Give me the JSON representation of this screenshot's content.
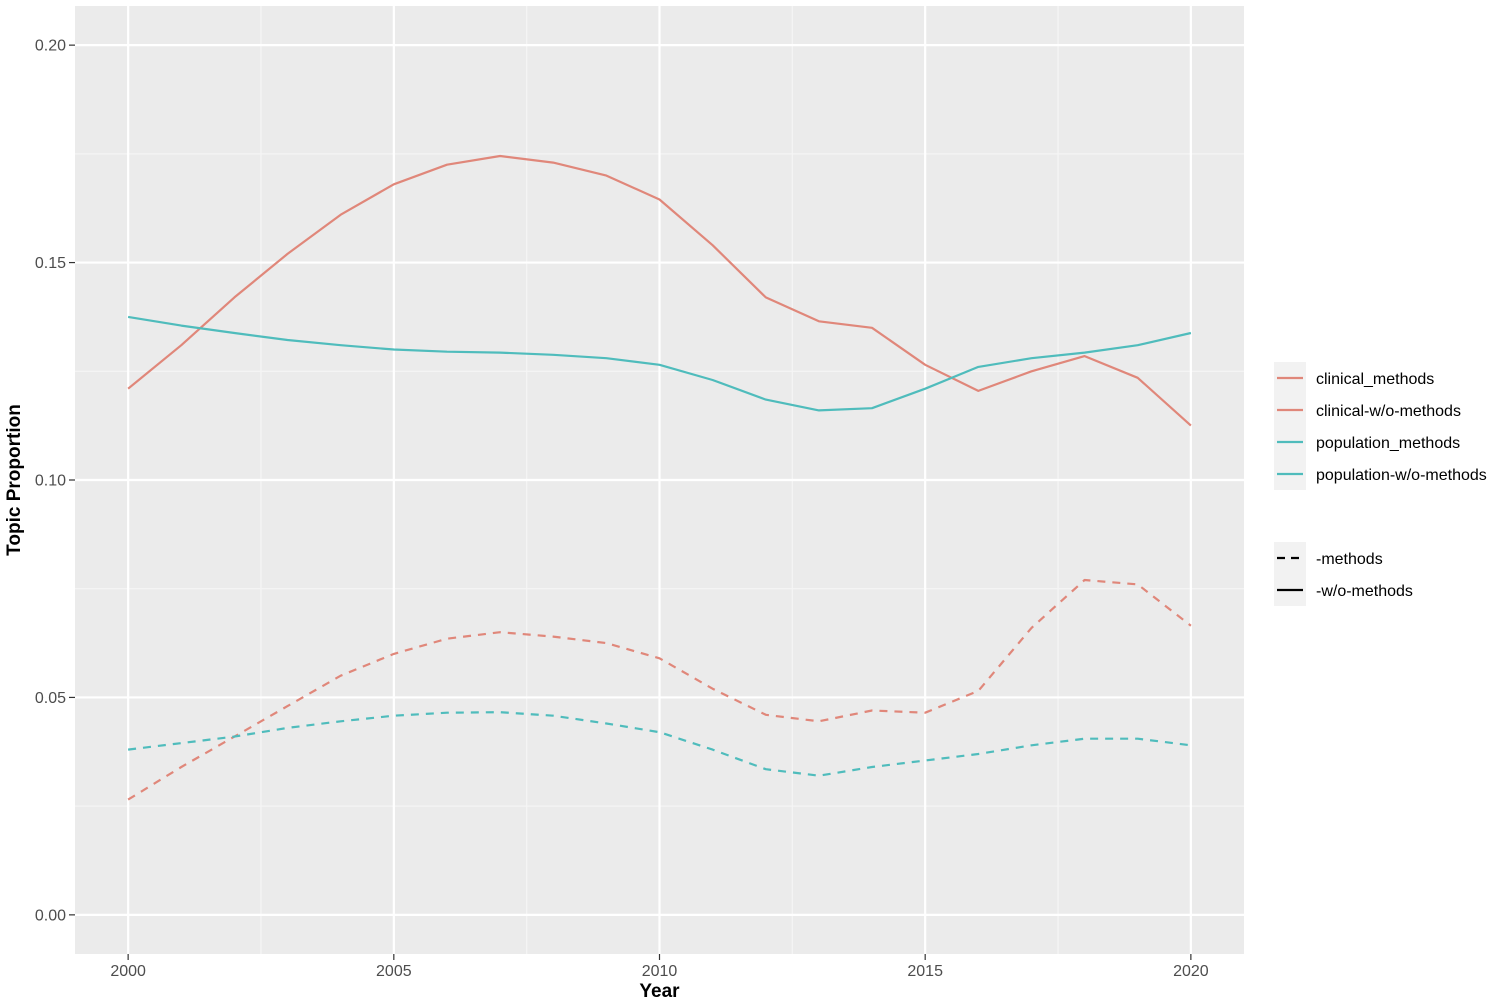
{
  "chart_data": {
    "type": "line",
    "xlabel": "Year",
    "ylabel": "Topic Proportion",
    "xlim": [
      1999,
      2021
    ],
    "ylim": [
      -0.009,
      0.209
    ],
    "x_ticks": [
      2000,
      2005,
      2010,
      2015,
      2020
    ],
    "x_tick_labels": [
      "2000",
      "2005",
      "2010",
      "2015",
      "2020"
    ],
    "y_ticks": [
      0.0,
      0.05,
      0.1,
      0.15,
      0.2
    ],
    "y_tick_labels": [
      "0.00",
      "0.05",
      "0.10",
      "0.15",
      "0.20"
    ],
    "grid": true,
    "legend_position": "right",
    "x": [
      2000,
      2001,
      2002,
      2003,
      2004,
      2005,
      2006,
      2007,
      2008,
      2009,
      2010,
      2011,
      2012,
      2013,
      2014,
      2015,
      2016,
      2017,
      2018,
      2019,
      2020
    ],
    "series": [
      {
        "name": "clinical_methods",
        "color": "#e0877a",
        "linetype": "dashed",
        "values": [
          0.0265,
          0.034,
          0.041,
          0.048,
          0.055,
          0.06,
          0.0635,
          0.065,
          0.064,
          0.0625,
          0.059,
          0.052,
          0.046,
          0.0445,
          0.047,
          0.0465,
          0.0515,
          0.066,
          0.077,
          0.076,
          0.0665
        ]
      },
      {
        "name": "clinical-w/o-methods",
        "color": "#e0877a",
        "linetype": "solid",
        "values": [
          0.121,
          0.131,
          0.142,
          0.152,
          0.161,
          0.168,
          0.1725,
          0.1745,
          0.173,
          0.17,
          0.1645,
          0.154,
          0.142,
          0.1365,
          0.135,
          0.1265,
          0.1205,
          0.125,
          0.1285,
          0.1235,
          0.1125
        ]
      },
      {
        "name": "population_methods",
        "color": "#4fbcbc",
        "linetype": "dashed",
        "values": [
          0.038,
          0.0395,
          0.041,
          0.043,
          0.0445,
          0.0458,
          0.0465,
          0.0466,
          0.0458,
          0.044,
          0.042,
          0.038,
          0.0335,
          0.032,
          0.034,
          0.0355,
          0.037,
          0.039,
          0.0405,
          0.0405,
          0.039
        ]
      },
      {
        "name": "population-w/o-methods",
        "color": "#4fbcbc",
        "linetype": "solid",
        "values": [
          0.1375,
          0.1355,
          0.1338,
          0.1322,
          0.131,
          0.13,
          0.1295,
          0.1293,
          0.1288,
          0.128,
          0.1265,
          0.123,
          0.1185,
          0.116,
          0.1165,
          0.121,
          0.126,
          0.128,
          0.1293,
          0.131,
          0.1338
        ]
      }
    ],
    "legend_colour": [
      {
        "label": "clinical_methods",
        "color": "#e0877a"
      },
      {
        "label": "clinical-w/o-methods",
        "color": "#e0877a"
      },
      {
        "label": "population_methods",
        "color": "#4fbcbc"
      },
      {
        "label": "population-w/o-methods",
        "color": "#4fbcbc"
      }
    ],
    "legend_linetype": [
      {
        "label": "-methods",
        "linetype": "dashed"
      },
      {
        "label": "-w/o-methods",
        "linetype": "solid"
      }
    ],
    "colors": {
      "panel_background": "#ebebeb",
      "grid_major": "#ffffff",
      "grid_minor": "#f5f5f5"
    }
  }
}
